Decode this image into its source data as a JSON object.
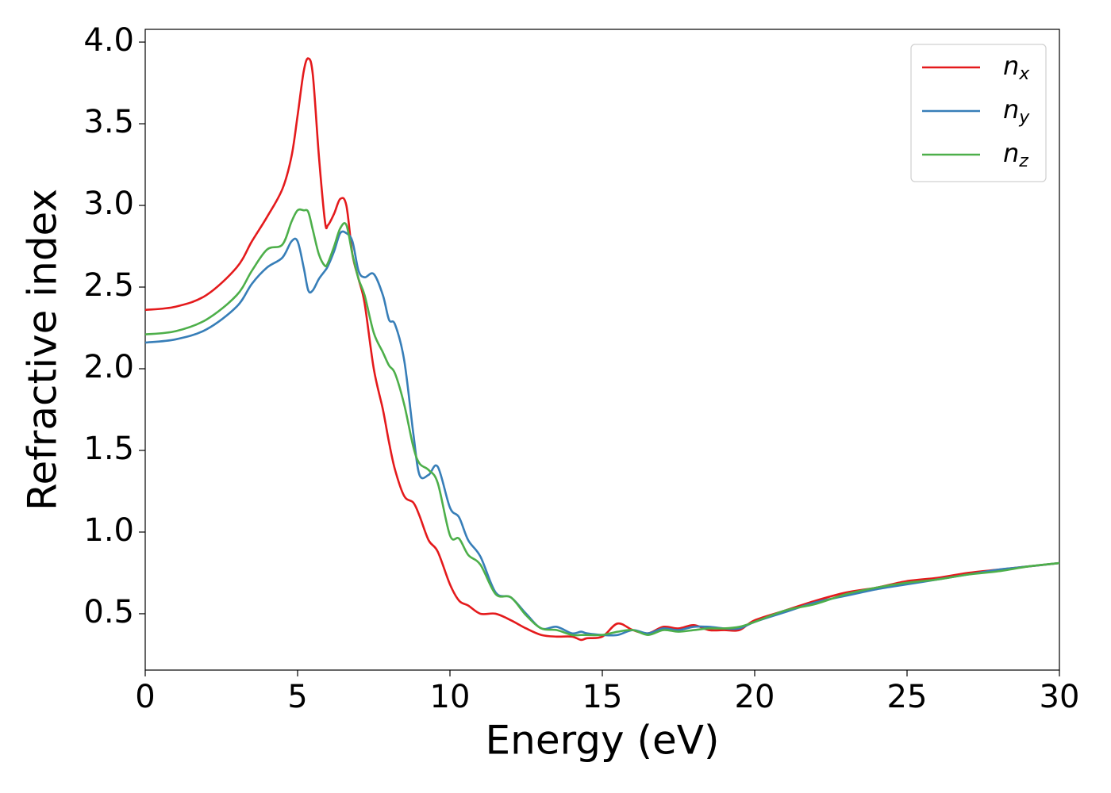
{
  "chart_data": {
    "type": "line",
    "xlabel": "Energy (eV)",
    "ylabel": "Refractive index",
    "x": [
      0,
      1,
      2,
      3,
      3.5,
      4,
      4.5,
      4.8,
      5.0,
      5.2,
      5.35,
      5.5,
      5.7,
      5.9,
      6.0,
      6.2,
      6.4,
      6.6,
      6.8,
      7.0,
      7.2,
      7.5,
      7.8,
      8.0,
      8.2,
      8.5,
      8.8,
      9.0,
      9.3,
      9.6,
      10.0,
      10.3,
      10.6,
      11.0,
      11.5,
      12.0,
      12.5,
      13.0,
      13.5,
      14.0,
      14.3,
      14.5,
      15.0,
      15.5,
      16.0,
      16.5,
      17.0,
      17.5,
      18.0,
      18.5,
      19.0,
      19.5,
      20.0,
      21,
      22,
      23,
      24,
      25,
      26,
      27,
      28,
      29,
      30
    ],
    "series": [
      {
        "name": "n_x",
        "color": "#e41a1c",
        "values": [
          2.36,
          2.38,
          2.45,
          2.62,
          2.78,
          2.93,
          3.1,
          3.3,
          3.55,
          3.82,
          3.9,
          3.8,
          3.3,
          2.9,
          2.88,
          2.95,
          3.04,
          3.0,
          2.7,
          2.55,
          2.4,
          2.0,
          1.75,
          1.55,
          1.38,
          1.22,
          1.18,
          1.1,
          0.95,
          0.88,
          0.68,
          0.58,
          0.55,
          0.5,
          0.5,
          0.46,
          0.41,
          0.37,
          0.36,
          0.36,
          0.34,
          0.35,
          0.36,
          0.44,
          0.4,
          0.38,
          0.42,
          0.41,
          0.43,
          0.4,
          0.4,
          0.4,
          0.46,
          0.52,
          0.58,
          0.63,
          0.66,
          0.7,
          0.72,
          0.75,
          0.77,
          0.79,
          0.81
        ]
      },
      {
        "name": "n_y",
        "color": "#377eb8",
        "values": [
          2.16,
          2.18,
          2.24,
          2.38,
          2.52,
          2.62,
          2.68,
          2.78,
          2.78,
          2.62,
          2.48,
          2.48,
          2.55,
          2.6,
          2.63,
          2.72,
          2.83,
          2.83,
          2.78,
          2.6,
          2.56,
          2.58,
          2.45,
          2.3,
          2.27,
          2.05,
          1.6,
          1.35,
          1.35,
          1.4,
          1.15,
          1.09,
          0.95,
          0.85,
          0.63,
          0.6,
          0.5,
          0.41,
          0.42,
          0.38,
          0.39,
          0.38,
          0.37,
          0.37,
          0.4,
          0.38,
          0.41,
          0.4,
          0.42,
          0.42,
          0.41,
          0.41,
          0.45,
          0.51,
          0.57,
          0.61,
          0.65,
          0.68,
          0.71,
          0.74,
          0.77,
          0.79,
          0.81
        ]
      },
      {
        "name": "n_z",
        "color": "#4daf4a",
        "values": [
          2.21,
          2.23,
          2.3,
          2.45,
          2.6,
          2.73,
          2.76,
          2.9,
          2.97,
          2.97,
          2.96,
          2.85,
          2.7,
          2.63,
          2.65,
          2.75,
          2.86,
          2.88,
          2.7,
          2.55,
          2.45,
          2.22,
          2.1,
          2.02,
          1.97,
          1.78,
          1.52,
          1.42,
          1.38,
          1.3,
          0.98,
          0.96,
          0.86,
          0.8,
          0.62,
          0.6,
          0.49,
          0.41,
          0.4,
          0.37,
          0.37,
          0.37,
          0.37,
          0.39,
          0.4,
          0.37,
          0.4,
          0.39,
          0.4,
          0.41,
          0.41,
          0.42,
          0.45,
          0.52,
          0.56,
          0.62,
          0.66,
          0.69,
          0.71,
          0.74,
          0.76,
          0.79,
          0.81
        ]
      }
    ],
    "xlim": [
      0,
      30
    ],
    "ylim": [
      0.155,
      4.078
    ],
    "xticks": [
      0,
      5,
      10,
      15,
      20,
      25,
      30
    ],
    "yticks": [
      0.5,
      {
        "value": 1.0,
        "label": "1.0"
      },
      1.5,
      {
        "value": 2.0,
        "label": "2.0"
      },
      2.5,
      {
        "value": 3.0,
        "label": "3.0"
      },
      3.5,
      {
        "value": 4.0,
        "label": "4.0"
      }
    ],
    "grid": false,
    "legend": "upper right"
  }
}
